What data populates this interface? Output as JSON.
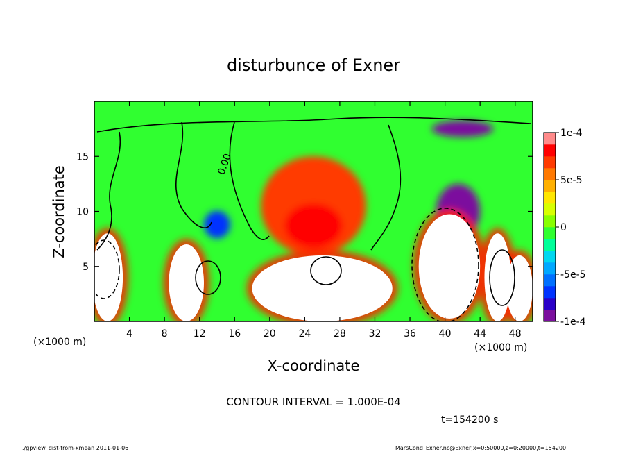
{
  "chart_data": {
    "type": "heatmap",
    "title": "disturbunce of Exner",
    "xlabel": "X-coordinate",
    "ylabel": "Z-coordinate",
    "x_unit_left": "(×1000 m)",
    "x_unit_right": "(×1000 m)",
    "xlim": [
      0,
      50
    ],
    "ylim": [
      0,
      20
    ],
    "x_ticks": [
      {
        "value": 4,
        "label": "4"
      },
      {
        "value": 8,
        "label": "8"
      },
      {
        "value": 12,
        "label": "12"
      },
      {
        "value": 16,
        "label": "16"
      },
      {
        "value": 20,
        "label": "20"
      },
      {
        "value": 24,
        "label": "24"
      },
      {
        "value": 28,
        "label": "28"
      },
      {
        "value": 32,
        "label": "32"
      },
      {
        "value": 36,
        "label": "36"
      },
      {
        "value": 40,
        "label": "40"
      },
      {
        "value": 44,
        "label": "44"
      },
      {
        "value": 48,
        "label": "48"
      }
    ],
    "y_ticks": [
      {
        "value": 5,
        "label": "5"
      },
      {
        "value": 10,
        "label": "10"
      },
      {
        "value": 15,
        "label": "15"
      }
    ],
    "colorbar": {
      "range": [
        -0.0001,
        0.0001
      ],
      "ticks": [
        {
          "value": 0.0001,
          "label": "1e-4"
        },
        {
          "value": 5e-05,
          "label": "5e-5"
        },
        {
          "value": 0,
          "label": "0"
        },
        {
          "value": -5e-05,
          "label": "-5e-5"
        },
        {
          "value": -0.0001,
          "label": "-1e-4"
        }
      ],
      "colors": [
        "#7b0f9e",
        "#2a00c8",
        "#0033ff",
        "#0070ff",
        "#00a8ff",
        "#00d8f0",
        "#00ff99",
        "#30ff30",
        "#88ff00",
        "#d8ff00",
        "#ffe600",
        "#ffb000",
        "#ff7800",
        "#ff3a00",
        "#ff0000",
        "#ff8a8a"
      ]
    },
    "field_features": [
      {
        "kind": "positive_maximum",
        "center": [
          25,
          10.5
        ],
        "extent": [
          12,
          9
        ],
        "value": 7e-05
      },
      {
        "kind": "negative_minimum",
        "center": [
          42,
          17.5
        ],
        "extent": [
          7,
          1.5
        ],
        "value": -0.0001
      },
      {
        "kind": "negative_minimum",
        "center": [
          41.5,
          10
        ],
        "extent": [
          5,
          5
        ],
        "value": -9e-05
      },
      {
        "kind": "negative_minimum",
        "center": [
          14,
          8.8
        ],
        "extent": [
          3,
          2.5
        ],
        "value": -7e-05
      },
      {
        "kind": "cell_positive_off_scale",
        "center": [
          40.5,
          5
        ],
        "extent": [
          7,
          9.5
        ],
        "value": 0.0003
      },
      {
        "kind": "cell_positive_off_scale",
        "center": [
          26,
          3
        ],
        "extent": [
          16,
          6
        ],
        "value": 0.0003
      },
      {
        "kind": "cell_positive_off_scale",
        "center": [
          1.5,
          4
        ],
        "extent": [
          3.5,
          8
        ],
        "value": 0.0003
      },
      {
        "kind": "cell_positive_off_scale",
        "center": [
          46,
          4
        ],
        "extent": [
          3,
          8
        ],
        "value": 0.0003
      },
      {
        "kind": "cell_positive_off_scale",
        "center": [
          48.5,
          3
        ],
        "extent": [
          3,
          6
        ],
        "value": 0.0003
      },
      {
        "kind": "cell_positive_off_scale",
        "center": [
          10.5,
          3.5
        ],
        "extent": [
          4,
          7
        ],
        "value": 0.0003
      }
    ],
    "contour_interval_label": "CONTOUR INTERVAL = 1.000E-04",
    "contour_label": "0.00",
    "time_label": "t=154200 s"
  },
  "footer": {
    "left": "./gpview_dist-from-xmean   2011-01-06",
    "right": "MarsCond_Exner.nc@Exner,x=0:50000,z=0:20000,t=154200"
  }
}
